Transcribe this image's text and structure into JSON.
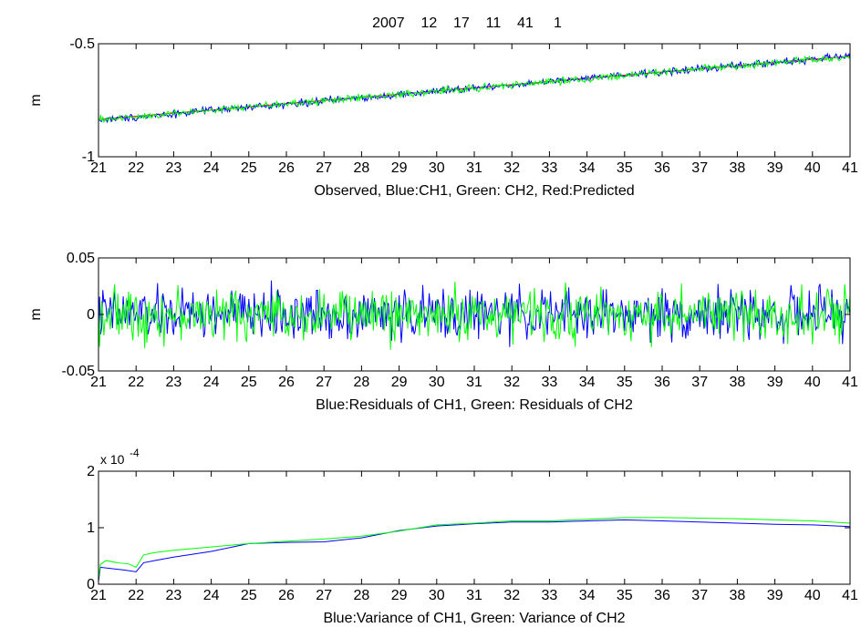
{
  "figure_title": "2007    12    17    11    41     1",
  "chart_data": [
    {
      "type": "line",
      "ylabel": "m",
      "xlabel": "Observed, Blue:CH1, Green: CH2, Red:Predicted",
      "xlim": [
        21,
        41
      ],
      "ylim": [
        -1,
        -0.5
      ],
      "xticks": [
        "21",
        "22",
        "23",
        "24",
        "25",
        "26",
        "27",
        "28",
        "29",
        "30",
        "31",
        "32",
        "33",
        "34",
        "35",
        "36",
        "37",
        "38",
        "39",
        "40",
        "41"
      ],
      "yticks": [
        -1,
        -0.5
      ],
      "ytick_labels": [
        "-1",
        "-0.5"
      ],
      "exponent_label": "",
      "grid": false,
      "series": [
        {
          "name": "Predicted",
          "color": "#ff0000",
          "x": [
            21,
            41
          ],
          "y": [
            -0.835,
            -0.555
          ],
          "noise": 0
        },
        {
          "name": "CH1",
          "color": "#0000ff",
          "x": [
            21,
            41
          ],
          "y": [
            -0.838,
            -0.555
          ],
          "noise": 0.008
        },
        {
          "name": "CH2",
          "color": "#00ff00",
          "x": [
            21,
            41
          ],
          "y": [
            -0.836,
            -0.557
          ],
          "noise": 0.008
        }
      ]
    },
    {
      "type": "line",
      "ylabel": "m",
      "xlabel": "Blue:Residuals of CH1, Green: Residuals of CH2",
      "xlim": [
        21,
        41
      ],
      "ylim": [
        -0.05,
        0.05
      ],
      "xticks": [
        "21",
        "22",
        "23",
        "24",
        "25",
        "26",
        "27",
        "28",
        "29",
        "30",
        "31",
        "32",
        "33",
        "34",
        "35",
        "36",
        "37",
        "38",
        "39",
        "40",
        "41"
      ],
      "yticks": [
        -0.05,
        0,
        0.05
      ],
      "ytick_labels": [
        "-0.05",
        "0",
        "0.05"
      ],
      "exponent_label": "",
      "grid": false,
      "series": [
        {
          "name": "Residuals of CH1",
          "color": "#0000ff",
          "x": [
            21,
            41
          ],
          "y": [
            0,
            0
          ],
          "noise": 0.011
        },
        {
          "name": "Residuals of CH2",
          "color": "#00ff00",
          "x": [
            21,
            41
          ],
          "y": [
            0,
            0
          ],
          "noise": 0.011
        }
      ]
    },
    {
      "type": "line",
      "ylabel": "",
      "xlabel": "Blue:Variance of CH1, Green: Variance of CH2",
      "xlim": [
        21,
        41
      ],
      "ylim": [
        0,
        2
      ],
      "xticks": [
        "21",
        "22",
        "23",
        "24",
        "25",
        "26",
        "27",
        "28",
        "29",
        "30",
        "31",
        "32",
        "33",
        "34",
        "35",
        "36",
        "37",
        "38",
        "39",
        "40",
        "41"
      ],
      "yticks": [
        0,
        1,
        2
      ],
      "ytick_labels": [
        "0",
        "1",
        "2"
      ],
      "exponent_label": "x 10",
      "exponent_power": "-4",
      "grid": false,
      "series": [
        {
          "name": "Variance of CH1",
          "color": "#0000ff",
          "x": [
            21,
            21.05,
            21.3,
            21.7,
            22.0,
            22.2,
            22.5,
            23,
            24,
            25,
            26,
            27,
            28,
            29,
            30,
            31,
            32,
            33,
            34,
            35,
            36,
            37,
            38,
            39,
            40,
            41
          ],
          "y": [
            0.05,
            0.3,
            0.28,
            0.25,
            0.22,
            0.38,
            0.42,
            0.48,
            0.58,
            0.72,
            0.74,
            0.75,
            0.82,
            0.95,
            1.03,
            1.07,
            1.1,
            1.1,
            1.12,
            1.14,
            1.12,
            1.1,
            1.08,
            1.06,
            1.05,
            1.02
          ],
          "noise": 0
        },
        {
          "name": "Variance of CH2",
          "color": "#00ff00",
          "x": [
            21,
            21.05,
            21.2,
            21.5,
            21.8,
            22.0,
            22.2,
            22.5,
            23,
            24,
            25,
            26,
            27,
            28,
            29,
            30,
            31,
            32,
            33,
            34,
            35,
            36,
            37,
            38,
            39,
            40,
            41
          ],
          "y": [
            0.1,
            0.35,
            0.42,
            0.38,
            0.36,
            0.3,
            0.52,
            0.56,
            0.6,
            0.66,
            0.72,
            0.76,
            0.8,
            0.85,
            0.94,
            1.05,
            1.08,
            1.12,
            1.12,
            1.15,
            1.18,
            1.18,
            1.17,
            1.16,
            1.14,
            1.12,
            1.08
          ],
          "noise": 0
        }
      ]
    }
  ]
}
